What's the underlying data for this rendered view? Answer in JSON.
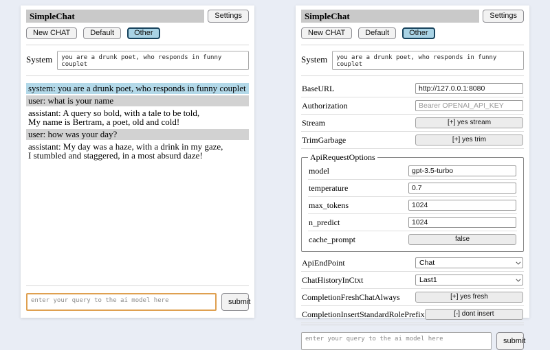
{
  "colors": {
    "page_bg": "#e9edf5",
    "titlebar_bg": "#c9c9c9",
    "system_msg_bg": "#b3d9e9",
    "user_msg_bg": "#d2d2d2",
    "active_session_bg": "#a9d3e5",
    "focused_input_border": "#dfa050"
  },
  "header": {
    "title": "SimpleChat",
    "settings_button": "Settings",
    "new_chat_button": "New CHAT",
    "session_default": "Default",
    "session_other": "Other",
    "active_session": "Other",
    "system_label": "System",
    "system_prompt": "you are a drunk poet, who responds in funny couplet"
  },
  "chat": {
    "messages": [
      {
        "role": "system",
        "text": "system: you are a drunk poet, who responds in funny couplet"
      },
      {
        "role": "user",
        "text": "user: what is your name"
      },
      {
        "role": "assistant",
        "text": "assistant: A query so bold, with a tale to be told,\nMy name is Bertram, a poet, old and cold!"
      },
      {
        "role": "user",
        "text": "user: how was your day?"
      },
      {
        "role": "assistant",
        "text": "assistant: My day was a haze, with a drink in my gaze,\nI stumbled and staggered, in a most absurd daze!"
      }
    ]
  },
  "query": {
    "placeholder": "enter your query to the ai model here",
    "submit_label": "submit"
  },
  "settings": {
    "base_url": {
      "label": "BaseURL",
      "value": "http://127.0.0.1:8080"
    },
    "authorization": {
      "label": "Authorization",
      "placeholder": "Bearer OPENAI_API_KEY"
    },
    "stream": {
      "label": "Stream",
      "button": "[+] yes stream"
    },
    "trim_garbage": {
      "label": "TrimGarbage",
      "button": "[+] yes trim"
    },
    "api_request_options": {
      "legend": "ApiRequestOptions",
      "model": {
        "label": "model",
        "value": "gpt-3.5-turbo"
      },
      "temperature": {
        "label": "temperature",
        "value": "0.7"
      },
      "max_tokens": {
        "label": "max_tokens",
        "value": "1024"
      },
      "n_predict": {
        "label": "n_predict",
        "value": "1024"
      },
      "cache_prompt": {
        "label": "cache_prompt",
        "button": "false"
      }
    },
    "api_endpoint": {
      "label": "ApiEndPoint",
      "selected": "Chat"
    },
    "chat_history_in_ctxt": {
      "label": "ChatHistoryInCtxt",
      "selected": "Last1"
    },
    "completion_fresh_chat_always": {
      "label": "CompletionFreshChatAlways",
      "button": "[+] yes fresh"
    },
    "completion_insert_standard_role_prefix": {
      "label": "CompletionInsertStandardRolePrefix",
      "button": "[-] dont insert"
    }
  }
}
